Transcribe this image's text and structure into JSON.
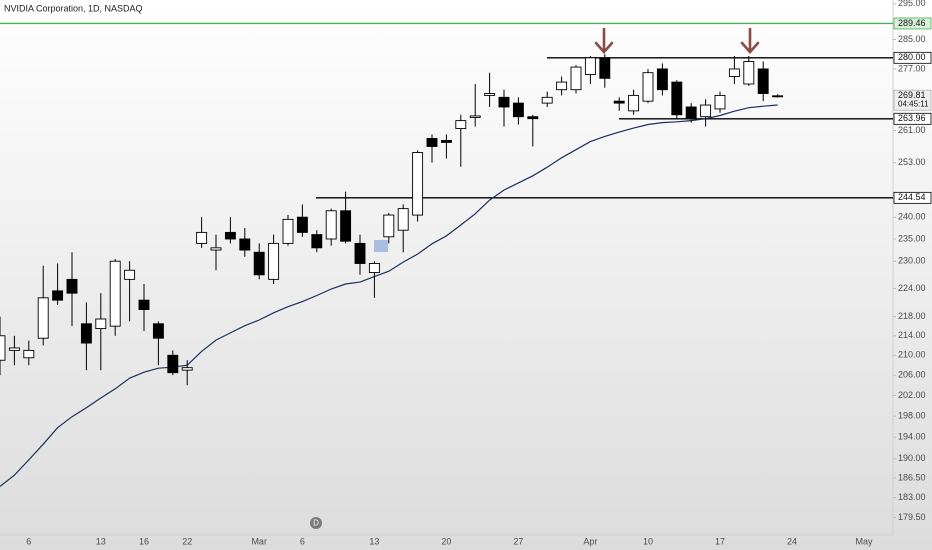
{
  "chart_data": {
    "type": "candlestick",
    "title": "NVIDIA Corporation, 1D, NASDAQ",
    "scale": "log",
    "grid": false,
    "up_color": "#ffffff",
    "down_color": "#000000",
    "wick_color": "#000000",
    "categories": [
      null,
      null,
      "6",
      null,
      null,
      null,
      null,
      "13",
      null,
      null,
      "16",
      null,
      null,
      "22",
      null,
      null,
      null,
      null,
      "Mar",
      null,
      null,
      "6",
      null,
      null,
      null,
      null,
      "13",
      null,
      null,
      null,
      null,
      "20",
      null,
      null,
      null,
      null,
      "27",
      null,
      null,
      null,
      null,
      "Apr",
      null,
      null,
      null,
      "10",
      null,
      null,
      null,
      null,
      "17",
      null,
      null,
      null,
      null,
      "24",
      null,
      null,
      null,
      null,
      "May"
    ],
    "open": [
      209,
      211,
      209.5,
      213.5,
      223.5,
      226,
      216.5,
      215.5,
      216,
      226,
      221.5,
      216.5,
      210,
      207,
      234,
      232.5,
      236.5,
      235,
      232,
      226,
      234,
      240,
      236,
      235,
      241.5,
      234,
      227.5,
      235.5,
      237,
      240.5,
      259,
      258.5,
      261.5,
      264.3,
      270,
      269.5,
      268,
      264.5,
      268,
      271.5,
      271.5,
      275.5,
      280,
      268.5,
      266,
      268.5,
      277,
      273.5,
      267,
      264.5,
      266.5,
      275,
      273,
      277,
      269.9,
      null,
      null,
      null,
      null,
      null,
      null
    ],
    "high": [
      218,
      214,
      213,
      229,
      229.5,
      232,
      221,
      223,
      230.5,
      230,
      225,
      217,
      211,
      209,
      240,
      236,
      240,
      237.5,
      234,
      236,
      240.5,
      243,
      237,
      242,
      246,
      236,
      230,
      241,
      243,
      256,
      260,
      260,
      265,
      273,
      276,
      271.5,
      269.5,
      265,
      271,
      275,
      278,
      280.5,
      281,
      269.5,
      271.5,
      277,
      278.5,
      274,
      268,
      269,
      271,
      280.5,
      280.5,
      279,
      270.3,
      null,
      null,
      null,
      null,
      null,
      null
    ],
    "low": [
      206,
      208,
      208,
      212,
      220.5,
      216,
      207,
      207,
      214,
      217,
      215,
      208,
      206,
      204,
      233,
      228,
      234,
      231,
      226,
      225,
      233.5,
      235.5,
      232,
      233.5,
      234,
      227,
      222,
      234,
      232,
      239,
      253,
      254,
      252,
      262,
      267,
      262,
      262.5,
      257,
      267,
      270,
      270.5,
      273,
      272,
      266,
      265,
      268,
      270,
      264,
      263,
      262,
      265.5,
      273,
      272.5,
      268.5,
      269.5,
      null,
      null,
      null,
      null,
      null,
      null
    ],
    "close": [
      214,
      211.5,
      211,
      222,
      221.5,
      223,
      212.5,
      217.5,
      230,
      228,
      219.5,
      213.5,
      206.5,
      207.5,
      236.5,
      233,
      235,
      232.5,
      227,
      234,
      239.5,
      236.5,
      233,
      241.5,
      234.5,
      229.5,
      229.5,
      240.5,
      242,
      255.5,
      257,
      258,
      263.5,
      264.7,
      270.5,
      267,
      264.5,
      264,
      269.5,
      273.5,
      277.5,
      280,
      274.5,
      268,
      270,
      276,
      271.5,
      265,
      264,
      267.5,
      270,
      277,
      279,
      270.5,
      269.81,
      null,
      null,
      null,
      null,
      null,
      null
    ],
    "moving_average": {
      "color": "#1c2f5e",
      "values": [
        185.0,
        187.0,
        189.8,
        192.7,
        195.8,
        197.9,
        199.6,
        201.5,
        203.3,
        205.4,
        206.6,
        207.4,
        207.6,
        208.0,
        210.8,
        213.1,
        214.6,
        216.1,
        217.3,
        218.8,
        220.1,
        221.2,
        222.5,
        223.9,
        225.0,
        225.4,
        226.6,
        227.8,
        229.8,
        231.6,
        233.9,
        235.7,
        238.2,
        240.8,
        244.0,
        246.4,
        248.1,
        249.8,
        251.9,
        254.2,
        256.2,
        258.2,
        259.5,
        260.6,
        261.6,
        262.5,
        263.0,
        263.2,
        263.5,
        264.0,
        264.8,
        265.9,
        266.8,
        267.2,
        267.5,
        null,
        null,
        null,
        null,
        null,
        null
      ]
    },
    "ylim": [
      176.5,
      296.1
    ],
    "yticks": [
      {
        "value": 295,
        "label": "295.00"
      },
      {
        "value": 285,
        "label": "285.00"
      },
      {
        "value": 277,
        "label": "277.00"
      },
      {
        "value": 261,
        "label": "261.00"
      },
      {
        "value": 253,
        "label": "253.00"
      },
      {
        "value": 240,
        "label": "240.00"
      },
      {
        "value": 235,
        "label": "235.00"
      },
      {
        "value": 230,
        "label": "230.00"
      },
      {
        "value": 224,
        "label": "224.00"
      },
      {
        "value": 218,
        "label": "218.00"
      },
      {
        "value": 214,
        "label": "214.00"
      },
      {
        "value": 210,
        "label": "210.00"
      },
      {
        "value": 206,
        "label": "206.00"
      },
      {
        "value": 202,
        "label": "202.00"
      },
      {
        "value": 198,
        "label": "198.00"
      },
      {
        "value": 194,
        "label": "194.00"
      },
      {
        "value": 190,
        "label": "190.00"
      },
      {
        "value": 186.5,
        "label": "186.50"
      },
      {
        "value": 183,
        "label": "183.00"
      },
      {
        "value": 179.5,
        "label": "179.50"
      }
    ],
    "levels": [
      {
        "value": 289.46,
        "color": "#4caf50"
      },
      {
        "value": 280,
        "label": "280.00",
        "color": "#000000"
      },
      {
        "value": 263.96,
        "color": "#000000"
      },
      {
        "value": 244.54,
        "color": "#000000"
      }
    ],
    "countdown": "04:45:11",
    "dividend_marker": "D"
  }
}
